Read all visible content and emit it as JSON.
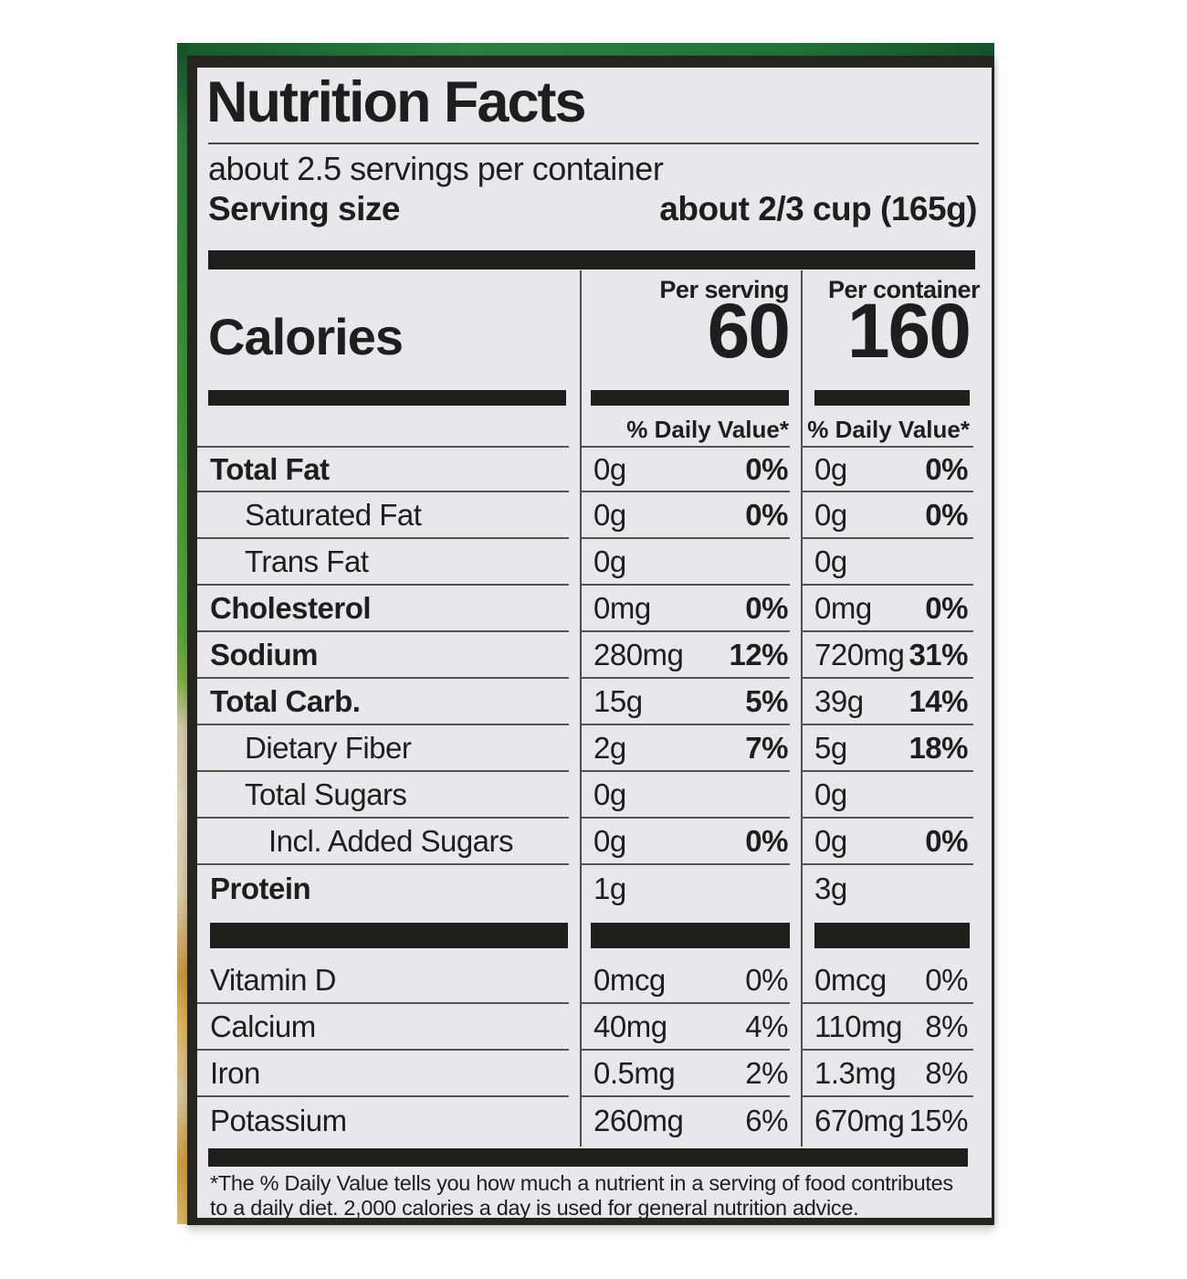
{
  "label": {
    "title": "Nutrition Facts",
    "servings_per_container": "about 2.5 servings per container",
    "serving_size_label": "Serving size",
    "serving_size_value": "about 2/3 cup (165g)",
    "calories_label": "Calories",
    "per_serving": {
      "header": "Per serving",
      "calories": "60",
      "dv_header": "% Daily Value*"
    },
    "per_container": {
      "header": "Per container",
      "calories": "160",
      "dv_header": "% Daily Value*"
    },
    "nutrients": [
      {
        "name": "Total Fat",
        "bold": true,
        "indent": 0,
        "ps": "0g",
        "psdv": "0%",
        "pc": "0g",
        "pcdv": "0%"
      },
      {
        "name": "Saturated Fat",
        "bold": false,
        "indent": 1,
        "ps": "0g",
        "psdv": "0%",
        "pc": "0g",
        "pcdv": "0%"
      },
      {
        "name": "Trans Fat",
        "bold": false,
        "indent": 1,
        "ps": "0g",
        "psdv": "",
        "pc": "0g",
        "pcdv": ""
      },
      {
        "name": "Cholesterol",
        "bold": true,
        "indent": 0,
        "ps": "0mg",
        "psdv": "0%",
        "pc": "0mg",
        "pcdv": "0%"
      },
      {
        "name": "Sodium",
        "bold": true,
        "indent": 0,
        "ps": "280mg",
        "psdv": "12%",
        "pc": "720mg",
        "pcdv": "31%"
      },
      {
        "name": "Total Carb.",
        "bold": true,
        "indent": 0,
        "ps": "15g",
        "psdv": "5%",
        "pc": "39g",
        "pcdv": "14%"
      },
      {
        "name": "Dietary Fiber",
        "bold": false,
        "indent": 1,
        "ps": "2g",
        "psdv": "7%",
        "pc": "5g",
        "pcdv": "18%"
      },
      {
        "name": "Total Sugars",
        "bold": false,
        "indent": 1,
        "ps": "0g",
        "psdv": "",
        "pc": "0g",
        "pcdv": ""
      },
      {
        "name": "Incl. Added Sugars",
        "bold": false,
        "indent": 2,
        "ps": "0g",
        "psdv": "0%",
        "pc": "0g",
        "pcdv": "0%"
      },
      {
        "name": "Protein",
        "bold": true,
        "indent": 0,
        "ps": "1g",
        "psdv": "",
        "pc": "3g",
        "pcdv": "",
        "noline": true
      }
    ],
    "vitamins": [
      {
        "name": "Vitamin D",
        "ps": "0mcg",
        "psdv": "0%",
        "pc": "0mcg",
        "pcdv": "0%"
      },
      {
        "name": "Calcium",
        "ps": "40mg",
        "psdv": "4%",
        "pc": "110mg",
        "pcdv": "8%"
      },
      {
        "name": "Iron",
        "ps": "0.5mg",
        "psdv": "2%",
        "pc": "1.3mg",
        "pcdv": "8%"
      },
      {
        "name": "Potassium",
        "ps": "260mg",
        "psdv": "6%",
        "pc": "670mg",
        "pcdv": "15%",
        "noline": true
      }
    ],
    "footnote_line1": "*The % Daily Value tells you how much a nutrient in a serving of food contributes",
    "footnote_line2": "to a daily diet. 2,000 calories a day is used for general nutrition advice."
  },
  "colors": {
    "label_background": "#e9e7ec",
    "label_border": "#26241f",
    "text": "#1f1d1e",
    "can_green_dark": "#175c2d",
    "can_green_light": "#55a43a",
    "can_tan": "#ddd2b8",
    "can_orange": "#cf9a3a"
  }
}
